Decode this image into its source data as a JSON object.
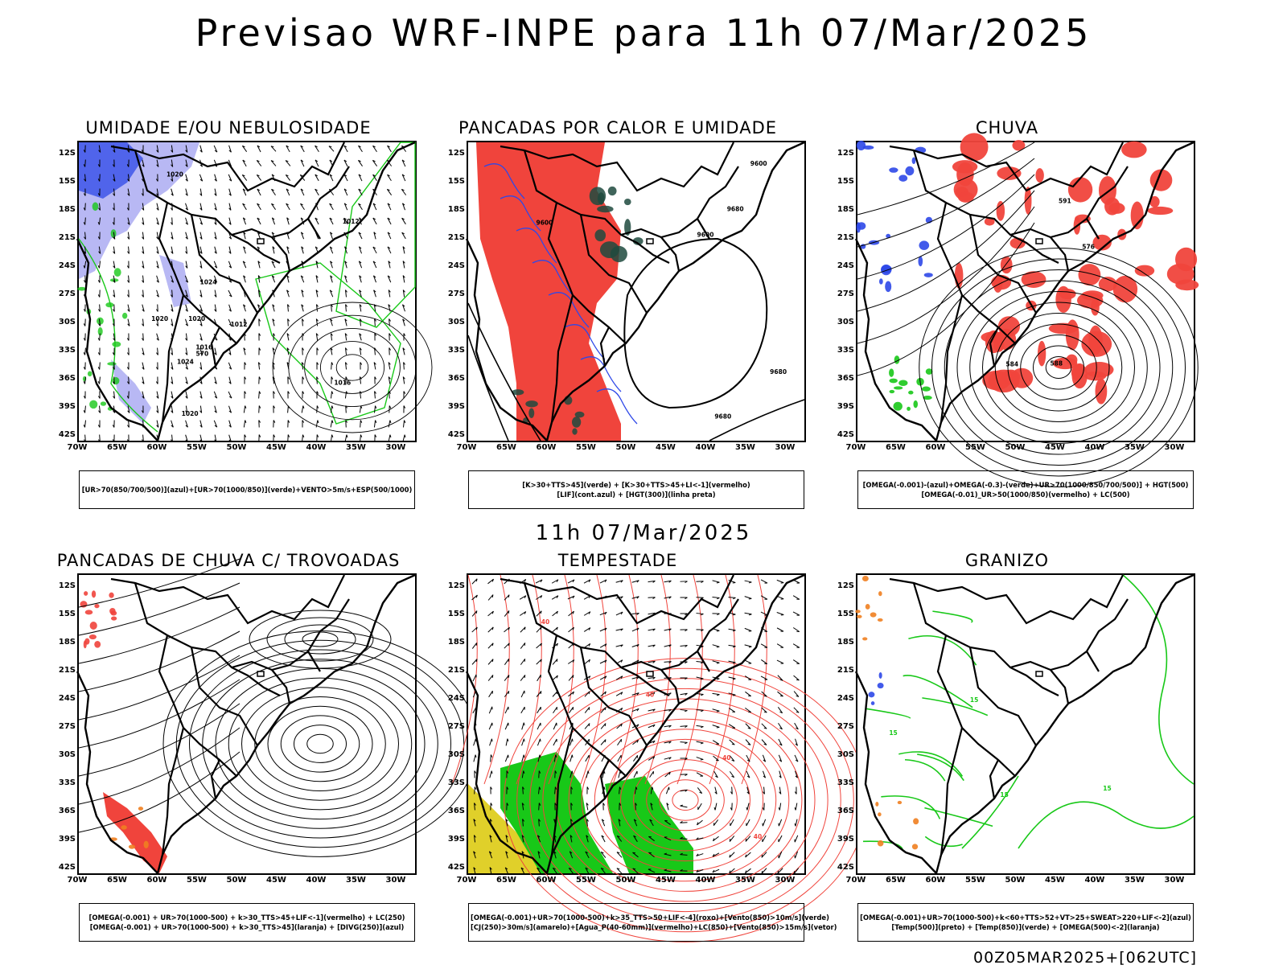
{
  "title": "Previsao WRF-INPE  para 11h 07/Mar/2025",
  "mid_title": "11h 07/Mar/2025",
  "footer": "00Z05MAR2025+[062UTC]",
  "lat_labels": [
    "12S",
    "15S",
    "18S",
    "21S",
    "24S",
    "27S",
    "30S",
    "33S",
    "36S",
    "39S",
    "42S"
  ],
  "lon_labels": [
    "70W",
    "65W",
    "60W",
    "55W",
    "50W",
    "45W",
    "40W",
    "35W",
    "30W"
  ],
  "colors": {
    "red": "#f0443c",
    "green": "#18c818",
    "blue": "#2e48e8",
    "lavender": "#b8b8f4",
    "yellow": "#e0d02a",
    "orange": "#f08020",
    "dark_teal": "#1e4a3e"
  },
  "panels": [
    {
      "title": "UMIDADE E/OU NEBULOSIDADE",
      "legend": [
        "[UR>70(850/700/500)](azul)+[UR>70(1000/850)](verde)+VENTO>5m/s+ESP(500/1000)"
      ],
      "contour_labels": [
        "1016",
        "1016",
        "1020",
        "1020",
        "1020",
        "1020",
        "1024",
        "1012",
        "1012",
        "1024",
        "570"
      ]
    },
    {
      "title": "PANCADAS POR CALOR E UMIDADE",
      "legend": [
        "[K>30+TTS>45](verde) + [K>30+TTS>45+LI<-1](vermelho)",
        "[LIF](cont.azul) + [HGT(300)](linha preta)"
      ],
      "contour_labels": [
        "9600",
        "9600",
        "9680",
        "9600",
        "9680",
        "9680"
      ]
    },
    {
      "title": "CHUVA",
      "legend": [
        "[OMEGA(-0.001)-(azul)+OMEGA(-0.3)-(verde)+UR>70(1000/850/700/500)] + HGT(500)",
        "[OMEGA(-0.01)_UR>50(1000/850)(vermelho) + LC(500)"
      ],
      "contour_labels": [
        "588",
        "584",
        "576",
        "591"
      ]
    },
    {
      "title": "PANCADAS DE CHUVA C/ TROVOADAS",
      "legend": [
        "[OMEGA(-0.001) + UR>70(1000-500) + k>30_TTS>45+LIF<-1](vermelho) + LC(250)",
        "[OMEGA(-0.001) + UR>70(1000-500) + k>30_TTS>45](laranja) + [DIVG(250)](azul)"
      ],
      "contour_labels": []
    },
    {
      "title": "TEMPESTADE",
      "legend": [
        "[OMEGA(-0.001)+UR>70(1000-500)+k>35_TTS>50+LIF<-4](roxo)+[Vento(850)>10m/s](verde)",
        "[CJ(250)>30m/s](amarelo)+[Agua_P(40-60mm)](vermelho)+LC(850)+[Vento(850)>15m/s](vetor)"
      ],
      "contour_labels": [
        "40",
        "40",
        "40",
        "40"
      ]
    },
    {
      "title": "GRANIZO",
      "legend": [
        "[OMEGA(-0.001)+UR>70(1000-500)+k<60+TTS>52+VT>25+SWEAT>220+LIF<-2](azul)",
        "[Temp(500)](preto) + [Temp(850)](verde) + [OMEGA(500)<-2](laranja)"
      ],
      "contour_labels": [
        "15",
        "15",
        "15",
        "15"
      ]
    }
  ]
}
